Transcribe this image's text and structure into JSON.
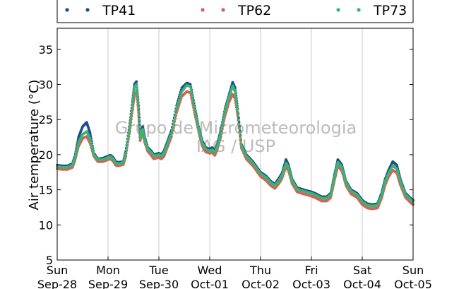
{
  "chart_data": {
    "type": "scatter",
    "ylabel": "Air temperature (°C)",
    "xlabel": "",
    "ylim": [
      5,
      38
    ],
    "xlim": [
      0,
      7
    ],
    "yticks": [
      5,
      10,
      15,
      20,
      25,
      30,
      35
    ],
    "xticks": [
      {
        "day": 0,
        "label1": "Sun",
        "label2": "Sep-28"
      },
      {
        "day": 1,
        "label1": "Mon",
        "label2": "Sep-29"
      },
      {
        "day": 2,
        "label1": "Tue",
        "label2": "Sep-30"
      },
      {
        "day": 3,
        "label1": "Wed",
        "label2": "Oct-01"
      },
      {
        "day": 4,
        "label1": "Thu",
        "label2": "Oct-02"
      },
      {
        "day": 5,
        "label1": "Fri",
        "label2": "Oct-03"
      },
      {
        "day": 6,
        "label1": "Sat",
        "label2": "Oct-04"
      },
      {
        "day": 7,
        "label1": "Sun",
        "label2": "Oct-05"
      }
    ],
    "grid": "vertical",
    "legend_position": "top",
    "watermark": [
      "Grupo de Micrometeorologia",
      "IAG / USP"
    ],
    "series": [
      {
        "name": "TP41",
        "color": "#1f4e8c",
        "points": [
          [
            0.0,
            18.5
          ],
          [
            0.1,
            18.4
          ],
          [
            0.2,
            18.4
          ],
          [
            0.3,
            18.7
          ],
          [
            0.35,
            19.8
          ],
          [
            0.42,
            22.5
          ],
          [
            0.5,
            24.0
          ],
          [
            0.58,
            24.6
          ],
          [
            0.65,
            23.0
          ],
          [
            0.72,
            20.2
          ],
          [
            0.8,
            19.4
          ],
          [
            0.9,
            19.5
          ],
          [
            1.0,
            19.8
          ],
          [
            1.05,
            19.9
          ],
          [
            1.1,
            19.6
          ],
          [
            1.15,
            19.0
          ],
          [
            1.2,
            18.9
          ],
          [
            1.3,
            19.0
          ],
          [
            1.35,
            20.5
          ],
          [
            1.42,
            24.0
          ],
          [
            1.48,
            27.5
          ],
          [
            1.52,
            30.0
          ],
          [
            1.56,
            30.4
          ],
          [
            1.6,
            27.0
          ],
          [
            1.63,
            22.5
          ],
          [
            1.68,
            24.0
          ],
          [
            1.72,
            22.5
          ],
          [
            1.78,
            21.0
          ],
          [
            1.85,
            20.5
          ],
          [
            1.9,
            20.0
          ],
          [
            2.0,
            20.2
          ],
          [
            2.05,
            20.0
          ],
          [
            2.1,
            20.5
          ],
          [
            2.15,
            21.5
          ],
          [
            2.25,
            23.5
          ],
          [
            2.35,
            27.0
          ],
          [
            2.45,
            29.5
          ],
          [
            2.55,
            30.2
          ],
          [
            2.62,
            30.0
          ],
          [
            2.7,
            27.0
          ],
          [
            2.78,
            24.0
          ],
          [
            2.85,
            22.0
          ],
          [
            2.92,
            21.0
          ],
          [
            3.0,
            20.8
          ],
          [
            3.05,
            21.0
          ],
          [
            3.1,
            20.5
          ],
          [
            3.15,
            21.5
          ],
          [
            3.22,
            23.5
          ],
          [
            3.3,
            26.5
          ],
          [
            3.38,
            28.5
          ],
          [
            3.45,
            30.3
          ],
          [
            3.5,
            29.5
          ],
          [
            3.55,
            26.5
          ],
          [
            3.62,
            21.5
          ],
          [
            3.72,
            20.0
          ],
          [
            3.85,
            19.0
          ],
          [
            4.0,
            17.5
          ],
          [
            4.1,
            17.0
          ],
          [
            4.2,
            16.2
          ],
          [
            4.28,
            15.8
          ],
          [
            4.35,
            16.5
          ],
          [
            4.42,
            17.3
          ],
          [
            4.5,
            19.3
          ],
          [
            4.55,
            18.5
          ],
          [
            4.62,
            16.5
          ],
          [
            4.72,
            15.3
          ],
          [
            4.85,
            15.0
          ],
          [
            5.0,
            14.7
          ],
          [
            5.1,
            14.4
          ],
          [
            5.2,
            14.0
          ],
          [
            5.3,
            14.0
          ],
          [
            5.38,
            14.5
          ],
          [
            5.45,
            17.0
          ],
          [
            5.52,
            19.3
          ],
          [
            5.6,
            18.5
          ],
          [
            5.68,
            16.2
          ],
          [
            5.78,
            15.0
          ],
          [
            5.9,
            14.5
          ],
          [
            6.0,
            13.5
          ],
          [
            6.1,
            13.0
          ],
          [
            6.2,
            12.9
          ],
          [
            6.3,
            13.0
          ],
          [
            6.38,
            14.5
          ],
          [
            6.45,
            16.5
          ],
          [
            6.52,
            17.8
          ],
          [
            6.6,
            19.0
          ],
          [
            6.68,
            18.5
          ],
          [
            6.75,
            16.5
          ],
          [
            6.85,
            14.5
          ],
          [
            6.95,
            13.8
          ],
          [
            7.0,
            13.5
          ]
        ]
      },
      {
        "name": "TP62",
        "color": "#d5625a",
        "points": [
          [
            0.0,
            18.0
          ],
          [
            0.1,
            17.9
          ],
          [
            0.2,
            17.9
          ],
          [
            0.3,
            18.2
          ],
          [
            0.35,
            19.2
          ],
          [
            0.42,
            21.2
          ],
          [
            0.5,
            22.3
          ],
          [
            0.58,
            22.6
          ],
          [
            0.65,
            21.6
          ],
          [
            0.72,
            19.8
          ],
          [
            0.8,
            19.0
          ],
          [
            0.9,
            19.0
          ],
          [
            1.0,
            19.3
          ],
          [
            1.05,
            19.4
          ],
          [
            1.1,
            19.1
          ],
          [
            1.15,
            18.5
          ],
          [
            1.2,
            18.4
          ],
          [
            1.3,
            18.6
          ],
          [
            1.35,
            19.8
          ],
          [
            1.42,
            23.0
          ],
          [
            1.48,
            26.3
          ],
          [
            1.52,
            28.5
          ],
          [
            1.56,
            28.9
          ],
          [
            1.6,
            26.0
          ],
          [
            1.63,
            22.0
          ],
          [
            1.68,
            23.2
          ],
          [
            1.72,
            21.8
          ],
          [
            1.78,
            20.5
          ],
          [
            1.85,
            19.9
          ],
          [
            1.9,
            19.4
          ],
          [
            2.0,
            19.6
          ],
          [
            2.05,
            19.4
          ],
          [
            2.1,
            19.8
          ],
          [
            2.15,
            20.7
          ],
          [
            2.25,
            22.6
          ],
          [
            2.35,
            26.0
          ],
          [
            2.45,
            28.3
          ],
          [
            2.55,
            29.0
          ],
          [
            2.62,
            28.8
          ],
          [
            2.7,
            26.0
          ],
          [
            2.78,
            23.3
          ],
          [
            2.85,
            21.3
          ],
          [
            2.92,
            20.4
          ],
          [
            3.0,
            20.2
          ],
          [
            3.05,
            20.3
          ],
          [
            3.1,
            19.9
          ],
          [
            3.15,
            20.8
          ],
          [
            3.22,
            22.6
          ],
          [
            3.3,
            25.5
          ],
          [
            3.38,
            27.5
          ],
          [
            3.45,
            28.6
          ],
          [
            3.5,
            28.0
          ],
          [
            3.55,
            25.5
          ],
          [
            3.62,
            21.0
          ],
          [
            3.72,
            19.4
          ],
          [
            3.85,
            18.4
          ],
          [
            4.0,
            16.9
          ],
          [
            4.1,
            16.4
          ],
          [
            4.2,
            15.6
          ],
          [
            4.28,
            15.2
          ],
          [
            4.35,
            15.8
          ],
          [
            4.42,
            16.6
          ],
          [
            4.5,
            18.3
          ],
          [
            4.55,
            17.7
          ],
          [
            4.62,
            15.9
          ],
          [
            4.72,
            14.7
          ],
          [
            4.85,
            14.4
          ],
          [
            5.0,
            14.1
          ],
          [
            5.1,
            13.8
          ],
          [
            5.2,
            13.4
          ],
          [
            5.3,
            13.4
          ],
          [
            5.38,
            13.9
          ],
          [
            5.45,
            16.2
          ],
          [
            5.52,
            18.4
          ],
          [
            5.6,
            17.7
          ],
          [
            5.68,
            15.6
          ],
          [
            5.78,
            14.4
          ],
          [
            5.9,
            13.9
          ],
          [
            6.0,
            12.9
          ],
          [
            6.1,
            12.4
          ],
          [
            6.2,
            12.3
          ],
          [
            6.3,
            12.4
          ],
          [
            6.38,
            13.8
          ],
          [
            6.45,
            15.7
          ],
          [
            6.52,
            16.9
          ],
          [
            6.6,
            17.8
          ],
          [
            6.68,
            17.4
          ],
          [
            6.75,
            15.7
          ],
          [
            6.85,
            13.9
          ],
          [
            6.95,
            13.2
          ],
          [
            7.0,
            12.9
          ]
        ]
      },
      {
        "name": "TP73",
        "color": "#3cb371",
        "points": [
          [
            0.0,
            18.3
          ],
          [
            0.1,
            18.2
          ],
          [
            0.2,
            18.2
          ],
          [
            0.3,
            18.5
          ],
          [
            0.35,
            19.5
          ],
          [
            0.42,
            21.7
          ],
          [
            0.5,
            22.9
          ],
          [
            0.58,
            23.3
          ],
          [
            0.65,
            22.2
          ],
          [
            0.72,
            20.0
          ],
          [
            0.8,
            19.3
          ],
          [
            0.9,
            19.3
          ],
          [
            1.0,
            19.6
          ],
          [
            1.05,
            19.7
          ],
          [
            1.1,
            19.4
          ],
          [
            1.15,
            18.8
          ],
          [
            1.2,
            18.7
          ],
          [
            1.3,
            18.9
          ],
          [
            1.35,
            20.2
          ],
          [
            1.42,
            23.5
          ],
          [
            1.48,
            27.0
          ],
          [
            1.52,
            29.6
          ],
          [
            1.56,
            30.0
          ],
          [
            1.6,
            26.7
          ],
          [
            1.63,
            22.3
          ],
          [
            1.68,
            23.6
          ],
          [
            1.72,
            22.2
          ],
          [
            1.78,
            20.8
          ],
          [
            1.85,
            20.3
          ],
          [
            1.9,
            19.8
          ],
          [
            2.0,
            20.0
          ],
          [
            2.05,
            19.8
          ],
          [
            2.1,
            20.2
          ],
          [
            2.15,
            21.2
          ],
          [
            2.25,
            23.1
          ],
          [
            2.35,
            26.6
          ],
          [
            2.45,
            29.0
          ],
          [
            2.55,
            29.9
          ],
          [
            2.62,
            29.7
          ],
          [
            2.7,
            26.7
          ],
          [
            2.78,
            23.8
          ],
          [
            2.85,
            21.7
          ],
          [
            2.92,
            20.8
          ],
          [
            3.0,
            20.5
          ],
          [
            3.05,
            20.7
          ],
          [
            3.1,
            20.3
          ],
          [
            3.15,
            21.2
          ],
          [
            3.22,
            23.1
          ],
          [
            3.3,
            26.2
          ],
          [
            3.38,
            28.2
          ],
          [
            3.45,
            29.8
          ],
          [
            3.5,
            29.0
          ],
          [
            3.55,
            26.1
          ],
          [
            3.62,
            21.3
          ],
          [
            3.72,
            19.8
          ],
          [
            3.85,
            18.8
          ],
          [
            4.0,
            17.3
          ],
          [
            4.1,
            16.8
          ],
          [
            4.2,
            16.0
          ],
          [
            4.28,
            15.6
          ],
          [
            4.35,
            16.2
          ],
          [
            4.42,
            17.0
          ],
          [
            4.5,
            18.8
          ],
          [
            4.55,
            18.2
          ],
          [
            4.62,
            16.3
          ],
          [
            4.72,
            15.1
          ],
          [
            4.85,
            14.8
          ],
          [
            5.0,
            14.5
          ],
          [
            5.1,
            14.2
          ],
          [
            5.2,
            13.8
          ],
          [
            5.3,
            13.8
          ],
          [
            5.38,
            14.3
          ],
          [
            5.45,
            16.7
          ],
          [
            5.52,
            18.9
          ],
          [
            5.6,
            18.2
          ],
          [
            5.68,
            16.0
          ],
          [
            5.78,
            14.8
          ],
          [
            5.9,
            14.3
          ],
          [
            6.0,
            13.3
          ],
          [
            6.1,
            12.8
          ],
          [
            6.2,
            12.7
          ],
          [
            6.3,
            12.8
          ],
          [
            6.38,
            14.2
          ],
          [
            6.45,
            16.2
          ],
          [
            6.52,
            17.4
          ],
          [
            6.6,
            18.4
          ],
          [
            6.68,
            18.0
          ],
          [
            6.75,
            16.2
          ],
          [
            6.85,
            14.3
          ],
          [
            6.95,
            13.6
          ],
          [
            7.0,
            13.3
          ]
        ]
      }
    ]
  }
}
